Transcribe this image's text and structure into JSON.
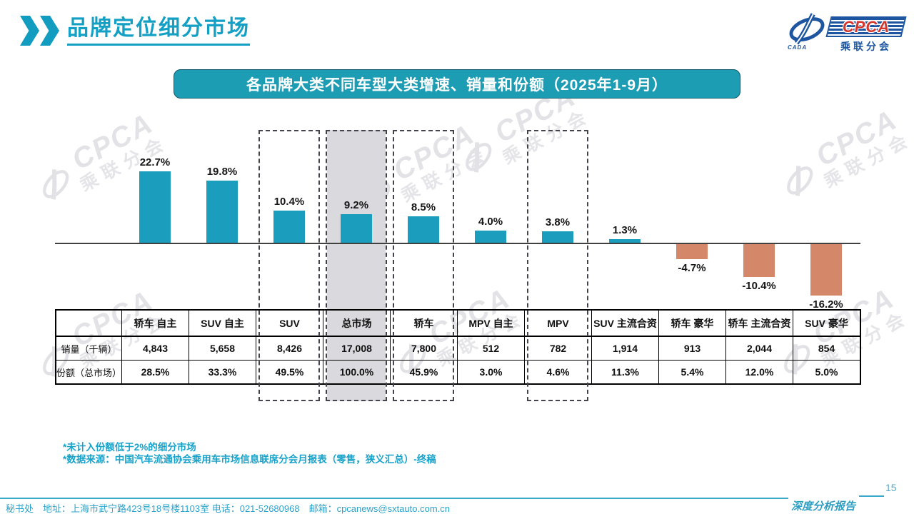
{
  "header": {
    "title": "品牌定位细分市场"
  },
  "logo": {
    "cpca": "CPCA",
    "cada": "CADA",
    "subtitle": "乘联分会"
  },
  "banner": {
    "title": "各品牌大类不同车型大类增速、销量和份额（2025年1-9月）"
  },
  "chart_data": {
    "type": "bar",
    "title": "各品牌大类不同车型大类增速、销量和份额（2025年1-9月）",
    "unit": "%",
    "categories": [
      "轿车 自主",
      "SUV 自主",
      "SUV",
      "总市场",
      "轿车",
      "MPV 自主",
      "MPV",
      "SUV 主流合资",
      "轿车 豪华",
      "轿车 主流合资",
      "SUV 豪华"
    ],
    "values": [
      22.7,
      19.8,
      10.4,
      9.2,
      8.5,
      4.0,
      3.8,
      1.3,
      -4.7,
      -10.4,
      -16.2
    ],
    "labels": [
      "22.7%",
      "19.8%",
      "10.4%",
      "9.2%",
      "8.5%",
      "4.0%",
      "3.8%",
      "1.3%",
      "-4.7%",
      "-10.4%",
      "-16.2%"
    ],
    "positive_color": "#1B9DBE",
    "negative_color": "#D5876A",
    "dashed_columns": [
      "SUV",
      "总市场",
      "轿车",
      "MPV"
    ],
    "filled_column": "总市场",
    "filled_color": "#D9D9DE",
    "ylim": [
      -18,
      25
    ],
    "grid": false,
    "legend": false,
    "table": {
      "row_labels": [
        "销量（千辆）",
        "份额（总市场）"
      ],
      "sales": [
        "4,843",
        "5,658",
        "8,426",
        "17,008",
        "7,800",
        "512",
        "782",
        "1,914",
        "913",
        "2,044",
        "854"
      ],
      "share": [
        "28.5%",
        "33.3%",
        "49.5%",
        "100.0%",
        "45.9%",
        "3.0%",
        "4.6%",
        "11.3%",
        "5.4%",
        "12.0%",
        "5.0%"
      ]
    }
  },
  "footnotes": [
    "*未计入份额低于2%的细分市场",
    "*数据来源：中国汽车流通协会乘用车市场信息联席分会月报表（零售，狭义汇总）-终稿"
  ],
  "footer": {
    "text": "秘书处　地址：上海市武宁路423号18号楼1103室 电话：021-52680968　邮箱：cpcanews@sxtauto.com.cn",
    "report_label": "深度分析报告",
    "page_number": "15"
  },
  "watermark": {
    "text_cpca": "CPCA",
    "text_sub": "乘联分会"
  }
}
